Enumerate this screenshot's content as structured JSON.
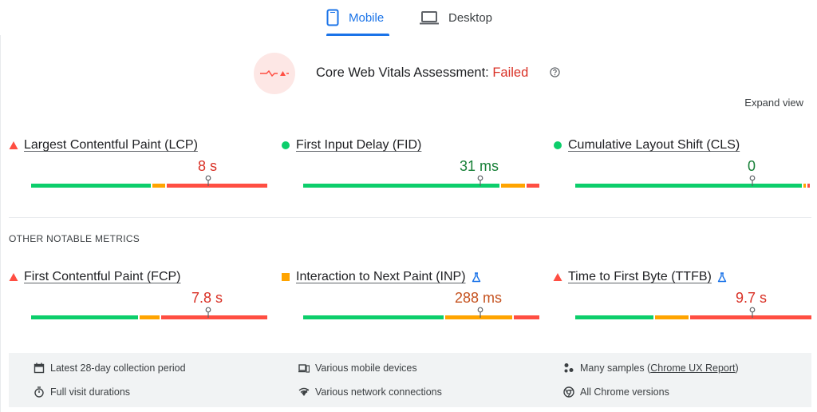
{
  "tabs": [
    {
      "label": "Mobile",
      "active": true,
      "icon": "smartphone-icon"
    },
    {
      "label": "Desktop",
      "active": false,
      "icon": "laptop-icon"
    }
  ],
  "assessment": {
    "title": "Core Web Vitals Assessment:",
    "status": "Failed",
    "status_color": "#d93025"
  },
  "expand_view": "Expand view",
  "core_metrics": [
    {
      "name": "Largest Contentful Paint (LCP)",
      "value": "8 s",
      "status": "poor"
    },
    {
      "name": "First Input Delay (FID)",
      "value": "31 ms",
      "status": "good"
    },
    {
      "name": "Cumulative Layout Shift (CLS)",
      "value": "0",
      "status": "good"
    }
  ],
  "other_label": "OTHER NOTABLE METRICS",
  "other_metrics": [
    {
      "name": "First Contentful Paint (FCP)",
      "value": "7.8 s",
      "status": "poor",
      "experimental": false
    },
    {
      "name": "Interaction to Next Paint (INP)",
      "value": "288 ms",
      "status": "average",
      "experimental": true
    },
    {
      "name": "Time to First Byte (TTFB)",
      "value": "9.7 s",
      "status": "poor",
      "experimental": true
    }
  ],
  "info": {
    "period": "Latest 28-day collection period",
    "durations": "Full visit durations",
    "devices": "Various mobile devices",
    "network": "Various network connections",
    "samples_prefix": "Many samples (",
    "samples_link": "Chrome UX Report",
    "samples_suffix": ")",
    "chrome": "All Chrome versions"
  },
  "colors": {
    "good": "#0cce6b",
    "average": "#ffa400",
    "poor": "#ff4e42",
    "accent": "#1a73e8"
  }
}
